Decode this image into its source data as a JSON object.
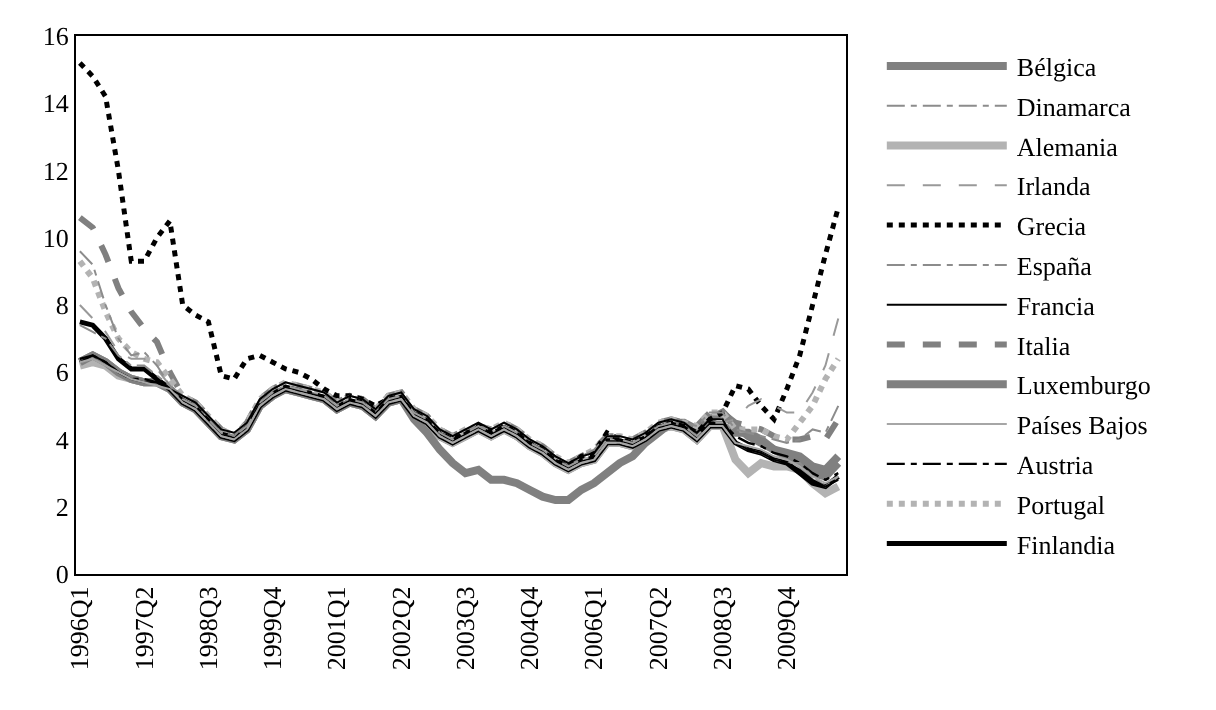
{
  "chart_data": {
    "type": "line",
    "categories": [
      "1996Q1",
      null,
      null,
      null,
      null,
      "1997Q2",
      null,
      null,
      null,
      null,
      "1998Q3",
      null,
      null,
      null,
      null,
      "1999Q4",
      null,
      null,
      null,
      null,
      "2001Q1",
      null,
      null,
      null,
      null,
      "2002Q2",
      null,
      null,
      null,
      null,
      "2003Q3",
      null,
      null,
      null,
      null,
      "2004Q4",
      null,
      null,
      null,
      null,
      "2006Q1",
      null,
      null,
      null,
      null,
      "2007Q2",
      null,
      null,
      null,
      null,
      "2008Q3",
      null,
      null,
      null,
      null,
      "2009Q4",
      null,
      null,
      null,
      null
    ],
    "ylim": [
      0,
      16
    ],
    "yticks": [
      0,
      2,
      4,
      6,
      8,
      10,
      12,
      14,
      16
    ],
    "legend": "right",
    "marker": "none",
    "series": [
      {
        "name": "Bélgica",
        "color": "#808080",
        "line_style": "solid",
        "values": [
          6.3,
          6.5,
          6.3,
          6.0,
          5.8,
          5.7,
          5.7,
          5.5,
          5.1,
          4.9,
          4.5,
          4.1,
          4.0,
          4.3,
          5.0,
          5.3,
          5.5,
          5.4,
          5.3,
          5.2,
          4.9,
          5.1,
          5.0,
          4.7,
          5.1,
          5.2,
          4.7,
          4.5,
          4.1,
          3.9,
          4.1,
          4.3,
          4.1,
          4.3,
          4.1,
          3.8,
          3.6,
          3.3,
          3.1,
          3.3,
          3.4,
          3.9,
          3.9,
          3.8,
          4.0,
          4.3,
          4.4,
          4.3,
          4.0,
          4.4,
          4.4,
          4.2,
          4.2,
          4.0,
          3.7,
          3.6,
          3.5,
          3.2,
          3.1,
          3.5
        ]
      },
      {
        "name": "Dinamarca",
        "color": "#8c8c8c",
        "line_style": "dashdot",
        "values": [
          7.4,
          7.2,
          7.0,
          6.5,
          6.2,
          6.2,
          5.9,
          5.6,
          5.1,
          4.9,
          4.5,
          4.1,
          4.0,
          4.3,
          5.0,
          5.3,
          5.5,
          5.4,
          5.3,
          5.2,
          4.9,
          5.1,
          5.0,
          4.7,
          5.1,
          5.2,
          4.7,
          4.5,
          4.1,
          3.9,
          4.1,
          4.3,
          4.1,
          4.3,
          4.1,
          3.8,
          3.6,
          3.3,
          3.1,
          3.3,
          3.4,
          3.9,
          3.9,
          3.8,
          4.0,
          4.3,
          4.4,
          4.3,
          4.0,
          4.4,
          4.4,
          3.9,
          3.7,
          3.6,
          3.4,
          3.3,
          3.3,
          2.9,
          2.6,
          2.9
        ]
      },
      {
        "name": "Alemania",
        "color": "#b3b3b3",
        "line_style": "solid",
        "values": [
          6.2,
          6.3,
          6.2,
          5.9,
          5.8,
          5.7,
          5.7,
          5.5,
          5.1,
          4.9,
          4.5,
          4.1,
          4.0,
          4.3,
          5.0,
          5.3,
          5.5,
          5.4,
          5.3,
          5.2,
          4.9,
          5.1,
          5.0,
          4.7,
          5.1,
          5.2,
          4.7,
          4.5,
          4.1,
          3.9,
          4.1,
          4.3,
          4.1,
          4.3,
          4.1,
          3.8,
          3.6,
          3.3,
          3.1,
          3.3,
          3.4,
          3.9,
          3.9,
          3.8,
          4.0,
          4.3,
          4.4,
          4.3,
          4.0,
          4.4,
          4.4,
          3.4,
          3.0,
          3.3,
          3.2,
          3.2,
          3.1,
          2.7,
          2.4,
          2.6
        ]
      },
      {
        "name": "Irlanda",
        "color": "#999999",
        "line_style": "dashed",
        "values": [
          8.0,
          7.6,
          7.2,
          6.6,
          6.4,
          6.4,
          6.1,
          5.6,
          5.2,
          5.0,
          4.6,
          4.2,
          4.1,
          4.4,
          5.1,
          5.4,
          5.6,
          5.5,
          5.4,
          5.3,
          5.0,
          5.2,
          5.1,
          4.8,
          5.2,
          5.3,
          4.8,
          4.6,
          4.2,
          4.0,
          4.2,
          4.4,
          4.2,
          4.4,
          4.2,
          3.9,
          3.7,
          3.4,
          3.2,
          3.4,
          3.5,
          4.0,
          4.0,
          3.9,
          4.1,
          4.4,
          4.5,
          4.4,
          4.1,
          4.5,
          4.5,
          4.6,
          5.0,
          5.2,
          5.0,
          4.8,
          4.8,
          5.4,
          6.2,
          7.6
        ]
      },
      {
        "name": "Grecia",
        "color": "#000000",
        "line_style": "dotted",
        "values": [
          15.2,
          14.8,
          14.2,
          12.0,
          9.3,
          9.3,
          10.0,
          10.5,
          8.0,
          7.7,
          7.5,
          5.9,
          5.8,
          6.4,
          6.5,
          6.3,
          6.1,
          6.0,
          5.8,
          5.5,
          5.3,
          5.3,
          5.2,
          5.0,
          5.2,
          5.3,
          4.8,
          4.6,
          4.2,
          4.0,
          4.2,
          4.4,
          4.2,
          4.4,
          4.2,
          3.9,
          3.7,
          3.4,
          3.2,
          3.5,
          3.6,
          4.2,
          4.0,
          3.9,
          4.1,
          4.4,
          4.5,
          4.4,
          4.2,
          4.6,
          4.8,
          5.6,
          5.5,
          5.0,
          4.6,
          5.5,
          6.5,
          8.0,
          9.5,
          10.9
        ]
      },
      {
        "name": "España",
        "color": "#8c8c8c",
        "line_style": "dashdot",
        "values": [
          9.6,
          9.2,
          8.0,
          7.0,
          6.5,
          6.6,
          6.2,
          5.6,
          5.3,
          5.1,
          4.7,
          4.3,
          4.1,
          4.5,
          5.2,
          5.5,
          5.7,
          5.6,
          5.5,
          5.4,
          5.1,
          5.3,
          5.2,
          4.9,
          5.3,
          5.4,
          4.9,
          4.7,
          4.3,
          4.1,
          4.3,
          4.4,
          4.3,
          4.5,
          4.3,
          4.0,
          3.8,
          3.5,
          3.3,
          3.5,
          3.7,
          4.1,
          4.1,
          4.0,
          4.2,
          4.5,
          4.6,
          4.5,
          4.4,
          4.8,
          4.8,
          4.3,
          4.2,
          4.1,
          4.0,
          3.9,
          4.0,
          4.3,
          4.2,
          5.0
        ]
      },
      {
        "name": "Francia",
        "color": "#000000",
        "line_style": "solid",
        "values": [
          6.3,
          6.5,
          6.3,
          6.0,
          5.8,
          5.7,
          5.7,
          5.5,
          5.3,
          5.1,
          4.7,
          4.3,
          4.2,
          4.5,
          5.2,
          5.5,
          5.7,
          5.6,
          5.5,
          5.4,
          5.1,
          5.3,
          5.2,
          4.9,
          5.3,
          5.4,
          4.9,
          4.7,
          4.3,
          4.1,
          4.3,
          4.5,
          4.3,
          4.5,
          4.3,
          4.0,
          3.8,
          3.5,
          3.3,
          3.5,
          3.6,
          4.1,
          4.1,
          4.0,
          4.2,
          4.5,
          4.6,
          4.5,
          4.2,
          4.6,
          4.6,
          3.9,
          3.7,
          3.6,
          3.4,
          3.3,
          3.1,
          2.8,
          2.6,
          2.8
        ]
      },
      {
        "name": "Italia",
        "color": "#808080",
        "line_style": "dashed",
        "values": [
          10.6,
          10.3,
          9.5,
          8.5,
          7.8,
          7.3,
          6.9,
          6.0,
          5.3,
          5.1,
          4.7,
          4.3,
          4.1,
          4.5,
          5.2,
          5.5,
          5.7,
          5.6,
          5.5,
          5.4,
          5.1,
          5.3,
          5.2,
          4.9,
          5.3,
          5.4,
          4.9,
          4.7,
          4.3,
          4.1,
          4.3,
          4.4,
          4.3,
          4.5,
          4.3,
          4.0,
          3.8,
          3.5,
          3.3,
          3.5,
          3.7,
          4.1,
          4.1,
          4.0,
          4.2,
          4.5,
          4.6,
          4.5,
          4.4,
          4.8,
          4.8,
          4.5,
          4.4,
          4.3,
          4.1,
          4.0,
          4.0,
          4.1,
          4.0,
          4.6
        ]
      },
      {
        "name": "Luxemburgo",
        "color": "#808080",
        "line_style": "solid",
        "values": [
          6.3,
          6.5,
          6.3,
          6.0,
          5.8,
          5.7,
          5.7,
          5.5,
          5.1,
          4.9,
          4.5,
          4.1,
          4.0,
          4.3,
          5.0,
          5.3,
          5.5,
          5.4,
          5.3,
          5.2,
          4.9,
          5.1,
          5.0,
          4.7,
          5.1,
          5.2,
          4.6,
          4.2,
          3.7,
          3.3,
          3.0,
          3.1,
          2.8,
          2.8,
          2.7,
          2.5,
          2.3,
          2.2,
          2.2,
          2.5,
          2.7,
          3.0,
          3.3,
          3.5,
          3.9,
          4.2,
          4.5,
          4.5,
          4.3,
          4.6,
          4.8,
          4.4,
          4.1,
          3.9,
          3.7,
          3.5,
          3.3,
          3.0,
          2.9,
          3.3
        ]
      },
      {
        "name": "Países Bajos",
        "color": "#a6a6a6",
        "line_style": "solid",
        "values": [
          6.3,
          6.4,
          6.2,
          6.0,
          5.8,
          5.7,
          5.6,
          5.5,
          5.1,
          4.9,
          4.5,
          4.1,
          4.0,
          4.3,
          5.0,
          5.3,
          5.5,
          5.4,
          5.3,
          5.2,
          4.9,
          5.1,
          5.0,
          4.7,
          5.1,
          5.2,
          4.7,
          4.5,
          4.1,
          3.9,
          4.1,
          4.3,
          4.1,
          4.3,
          4.1,
          3.8,
          3.6,
          3.3,
          3.1,
          3.3,
          3.4,
          3.9,
          3.9,
          3.8,
          4.0,
          4.3,
          4.4,
          4.3,
          4.0,
          4.4,
          4.4,
          3.9,
          3.8,
          3.7,
          3.5,
          3.4,
          3.2,
          2.9,
          2.7,
          2.9
        ]
      },
      {
        "name": "Austria",
        "color": "#000000",
        "line_style": "dashdot",
        "values": [
          6.4,
          6.5,
          6.3,
          6.0,
          5.8,
          5.8,
          5.7,
          5.5,
          5.2,
          5.0,
          4.6,
          4.2,
          4.1,
          4.4,
          5.1,
          5.4,
          5.6,
          5.5,
          5.4,
          5.3,
          5.0,
          5.2,
          5.1,
          4.8,
          5.2,
          5.3,
          4.8,
          4.6,
          4.2,
          4.0,
          4.2,
          4.4,
          4.2,
          4.4,
          4.2,
          3.9,
          3.7,
          3.4,
          3.2,
          3.4,
          3.5,
          4.0,
          4.0,
          3.9,
          4.1,
          4.4,
          4.5,
          4.4,
          4.1,
          4.5,
          4.5,
          4.1,
          3.9,
          3.8,
          3.6,
          3.5,
          3.3,
          3.0,
          2.8,
          3.0
        ]
      },
      {
        "name": "Portugal",
        "color": "#b3b3b3",
        "line_style": "dotted",
        "values": [
          9.3,
          8.8,
          7.8,
          7.0,
          6.6,
          6.4,
          6.3,
          5.8,
          5.3,
          5.1,
          4.7,
          4.3,
          4.1,
          4.5,
          5.2,
          5.5,
          5.7,
          5.6,
          5.5,
          5.4,
          5.1,
          5.3,
          5.2,
          4.9,
          5.3,
          5.4,
          4.9,
          4.7,
          4.3,
          4.1,
          4.3,
          4.4,
          4.3,
          4.5,
          4.3,
          4.0,
          3.8,
          3.5,
          3.3,
          3.5,
          3.7,
          4.1,
          4.1,
          4.0,
          4.2,
          4.5,
          4.6,
          4.5,
          4.4,
          4.8,
          4.8,
          4.3,
          4.3,
          4.3,
          4.1,
          4.0,
          4.5,
          5.0,
          5.8,
          6.4
        ]
      },
      {
        "name": "Finlandia",
        "color": "#000000",
        "line_style": "solid",
        "values": [
          7.5,
          7.4,
          7.0,
          6.4,
          6.1,
          6.1,
          5.8,
          5.5,
          5.1,
          4.9,
          4.5,
          4.1,
          4.0,
          4.3,
          5.0,
          5.3,
          5.5,
          5.4,
          5.3,
          5.2,
          4.9,
          5.1,
          5.0,
          4.7,
          5.1,
          5.2,
          4.7,
          4.5,
          4.1,
          3.9,
          4.1,
          4.3,
          4.1,
          4.3,
          4.1,
          3.8,
          3.6,
          3.3,
          3.1,
          3.3,
          3.4,
          3.9,
          3.9,
          3.8,
          4.0,
          4.3,
          4.4,
          4.3,
          4.0,
          4.4,
          4.4,
          3.9,
          3.7,
          3.6,
          3.4,
          3.3,
          3.0,
          2.7,
          2.6,
          2.9
        ]
      }
    ]
  }
}
